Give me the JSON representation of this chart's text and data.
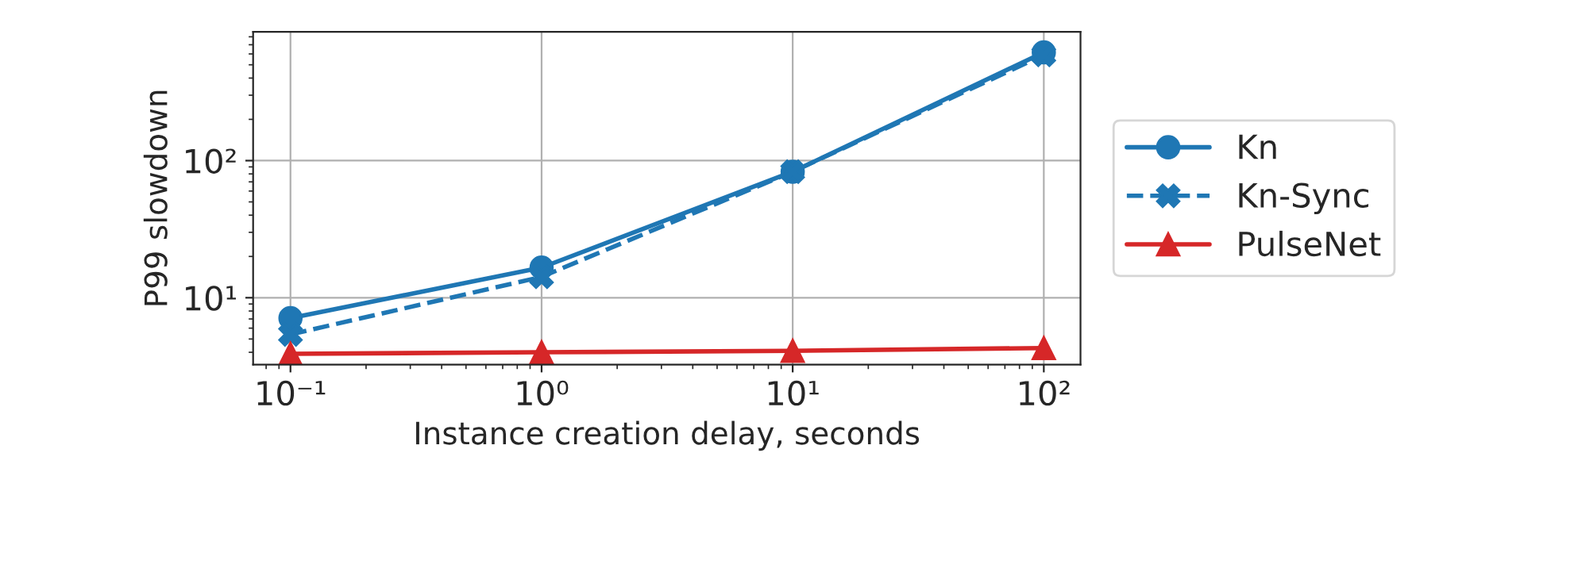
{
  "chart_data": {
    "type": "line",
    "xlabel": "Instance creation delay, seconds",
    "ylabel": "P99 slowdown",
    "log": "xy",
    "grid": true,
    "legend": "right",
    "x": [
      0.1,
      1,
      10,
      100
    ],
    "xlim": [
      0.071,
      140
    ],
    "ylim": [
      3.25,
      870
    ],
    "xticks": [
      {
        "value": 0.1,
        "label": "10⁻¹"
      },
      {
        "value": 1,
        "label": "10⁰"
      },
      {
        "value": 10,
        "label": "10¹"
      },
      {
        "value": 100,
        "label": "10²"
      }
    ],
    "yticks": [
      {
        "value": 10,
        "label": "10¹"
      },
      {
        "value": 100,
        "label": "10²"
      }
    ],
    "series": [
      {
        "name": "Kn",
        "color": "#1f77b4",
        "marker": "circle",
        "line_style": "solid",
        "values": [
          7.1,
          16.6,
          83,
          616
        ]
      },
      {
        "name": "Kn-Sync",
        "color": "#1f77b4",
        "marker": "cross",
        "line_style": "dashed",
        "values": [
          5.4,
          14.2,
          83,
          590
        ]
      },
      {
        "name": "PulseNet",
        "color": "#d62728",
        "marker": "triangle",
        "line_style": "solid",
        "values": [
          3.9,
          4.0,
          4.1,
          4.3
        ]
      }
    ]
  }
}
